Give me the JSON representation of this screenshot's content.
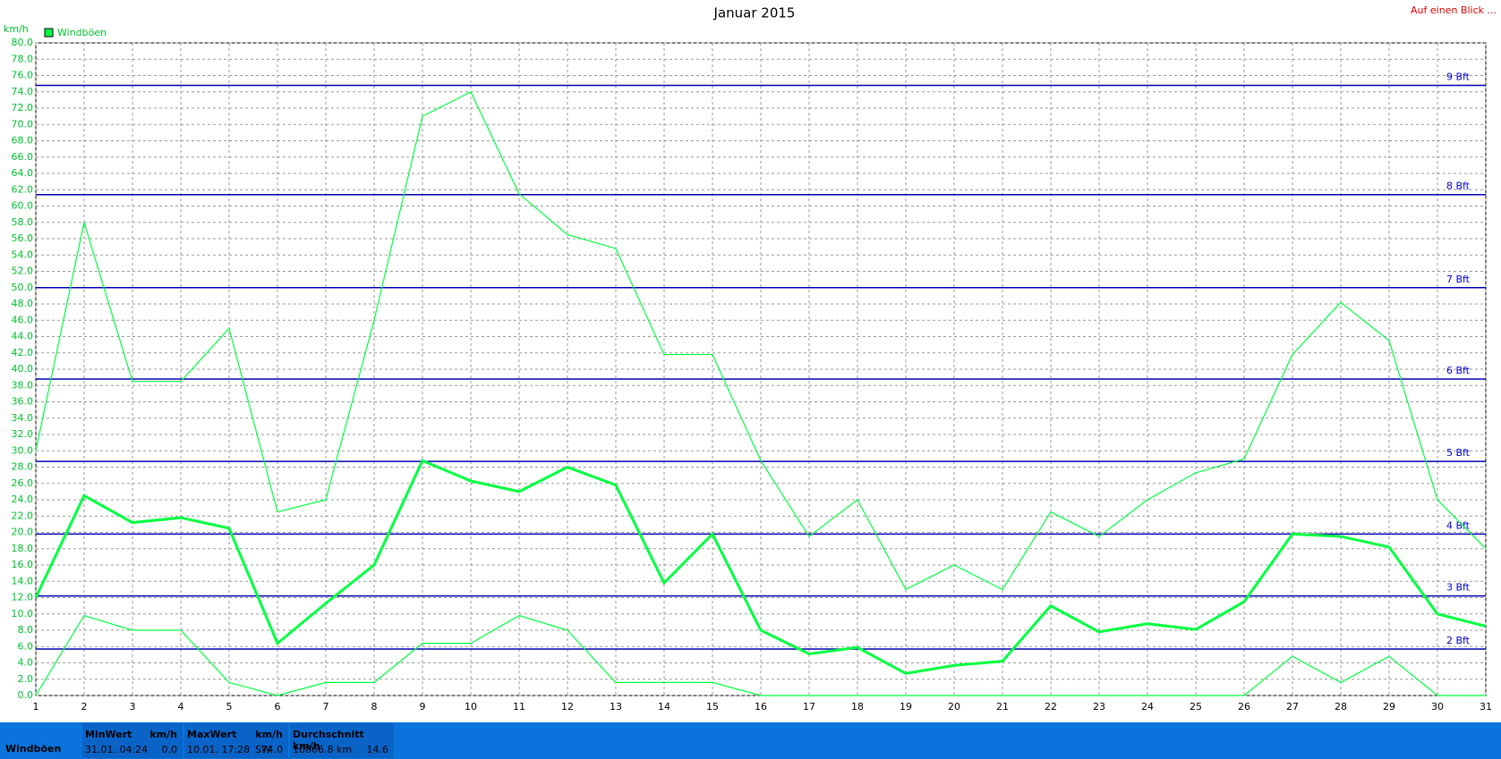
{
  "chart_data": {
    "type": "line",
    "title": "Januar 2015",
    "y_label": "km/h",
    "link": "Auf einen Blick ...",
    "x": [
      1,
      2,
      3,
      4,
      5,
      6,
      7,
      8,
      9,
      10,
      11,
      12,
      13,
      14,
      15,
      16,
      17,
      18,
      19,
      20,
      21,
      22,
      23,
      24,
      25,
      26,
      27,
      28,
      29,
      30,
      31
    ],
    "series": [
      {
        "name": "Windböen",
        "color": "#00ff40",
        "values": [
          12,
          24.5,
          21.2,
          21.8,
          20.5,
          6.4,
          11.3,
          16,
          28.8,
          26.3,
          25,
          28,
          25.8,
          13.8,
          19.8,
          8,
          5.1,
          5.9,
          2.7,
          3.7,
          4.2,
          11,
          7.8,
          8.8,
          8.1,
          11.5,
          19.8,
          19.5,
          18.2,
          10,
          8.5
        ]
      },
      {
        "color": "#00ff40",
        "values": [
          30,
          58,
          38.5,
          38.5,
          45,
          22.5,
          24,
          46,
          71,
          74,
          61.5,
          56.5,
          54.8,
          41.8,
          41.8,
          28.8,
          19.5,
          24,
          13,
          16,
          13,
          22.5,
          19.5,
          24,
          27.3,
          29,
          41.8,
          48.2,
          43.5,
          24,
          18
        ]
      },
      {
        "color": "#00ff40",
        "values": [
          0,
          9.8,
          8,
          8,
          1.6,
          0,
          1.6,
          1.6,
          6.4,
          6.4,
          9.8,
          8,
          1.6,
          1.6,
          1.6,
          0,
          0,
          0,
          0,
          0,
          0,
          0,
          0,
          0,
          0,
          0,
          4.8,
          1.6,
          4.8,
          0,
          0
        ]
      }
    ],
    "xlim": [
      1,
      31
    ],
    "xticks": [
      1,
      2,
      3,
      4,
      5,
      6,
      7,
      8,
      9,
      10,
      11,
      12,
      13,
      14,
      15,
      16,
      17,
      18,
      19,
      20,
      21,
      22,
      23,
      24,
      25,
      26,
      27,
      28,
      29,
      30,
      31
    ],
    "ylim": [
      0,
      80
    ],
    "yticks": [
      {
        "value": 0,
        "label": "0.0"
      },
      {
        "value": 2,
        "label": "2.0"
      },
      {
        "value": 4,
        "label": "4.0"
      },
      {
        "value": 6,
        "label": "6.0"
      },
      {
        "value": 8,
        "label": "8.0"
      },
      {
        "value": 10,
        "label": "10.0"
      },
      {
        "value": 12,
        "label": "12.0"
      },
      {
        "value": 14,
        "label": "14.0"
      },
      {
        "value": 16,
        "label": "16.0"
      },
      {
        "value": 18,
        "label": "18.0"
      },
      {
        "value": 20,
        "label": "20.0"
      },
      {
        "value": 22,
        "label": "22.0"
      },
      {
        "value": 24,
        "label": "24.0"
      },
      {
        "value": 26,
        "label": "26.0"
      },
      {
        "value": 28,
        "label": "28.0"
      },
      {
        "value": 30,
        "label": "30.0"
      },
      {
        "value": 32,
        "label": "32.0"
      },
      {
        "value": 34,
        "label": "34.0"
      },
      {
        "value": 36,
        "label": "36.0"
      },
      {
        "value": 38,
        "label": "38.0"
      },
      {
        "value": 40,
        "label": "40.0"
      },
      {
        "value": 42,
        "label": "42.0"
      },
      {
        "value": 44,
        "label": "44.0"
      },
      {
        "value": 46,
        "label": "46.0"
      },
      {
        "value": 48,
        "label": "48.0"
      },
      {
        "value": 50,
        "label": "50.0"
      },
      {
        "value": 52,
        "label": "52.0"
      },
      {
        "value": 54,
        "label": "54.0"
      },
      {
        "value": 56,
        "label": "56.0"
      },
      {
        "value": 58,
        "label": "58.0"
      },
      {
        "value": 60,
        "label": "60.0"
      },
      {
        "value": 62,
        "label": "62.0"
      },
      {
        "value": 64,
        "label": "64.0"
      },
      {
        "value": 66,
        "label": "66.0"
      },
      {
        "value": 68,
        "label": "68.0"
      },
      {
        "value": 70,
        "label": "70.0"
      },
      {
        "value": 72,
        "label": "72.0"
      },
      {
        "value": 74,
        "label": "74.0"
      },
      {
        "value": 76,
        "label": "76.0"
      },
      {
        "value": 78,
        "label": "78.0"
      },
      {
        "value": 80,
        "label": "80.0"
      }
    ],
    "reference_lines": [
      {
        "value": 5.7,
        "label": "2 Bft"
      },
      {
        "value": 12.2,
        "label": "3 Bft"
      },
      {
        "value": 19.8,
        "label": "4 Bft"
      },
      {
        "value": 28.7,
        "label": "5 Bft"
      },
      {
        "value": 38.8,
        "label": "6 Bft"
      },
      {
        "value": 50,
        "label": "7 Bft"
      },
      {
        "value": 61.4,
        "label": "8 Bft"
      },
      {
        "value": 74.8,
        "label": "9 Bft"
      }
    ],
    "grid": true
  },
  "footer": {
    "label": "Windböen",
    "cells": [
      {
        "title": "MinWert",
        "unit": "km/h",
        "date": "31.01. 04:24",
        "value": "0.0"
      },
      {
        "title": "MaxWert",
        "unit": "km/h",
        "date": "10.01. 17:28",
        "direction": "SW",
        "value": "74.0"
      },
      {
        "title": "Durchschnitt km/h",
        "date": "10866.8 km",
        "value": "14.6"
      }
    ]
  }
}
